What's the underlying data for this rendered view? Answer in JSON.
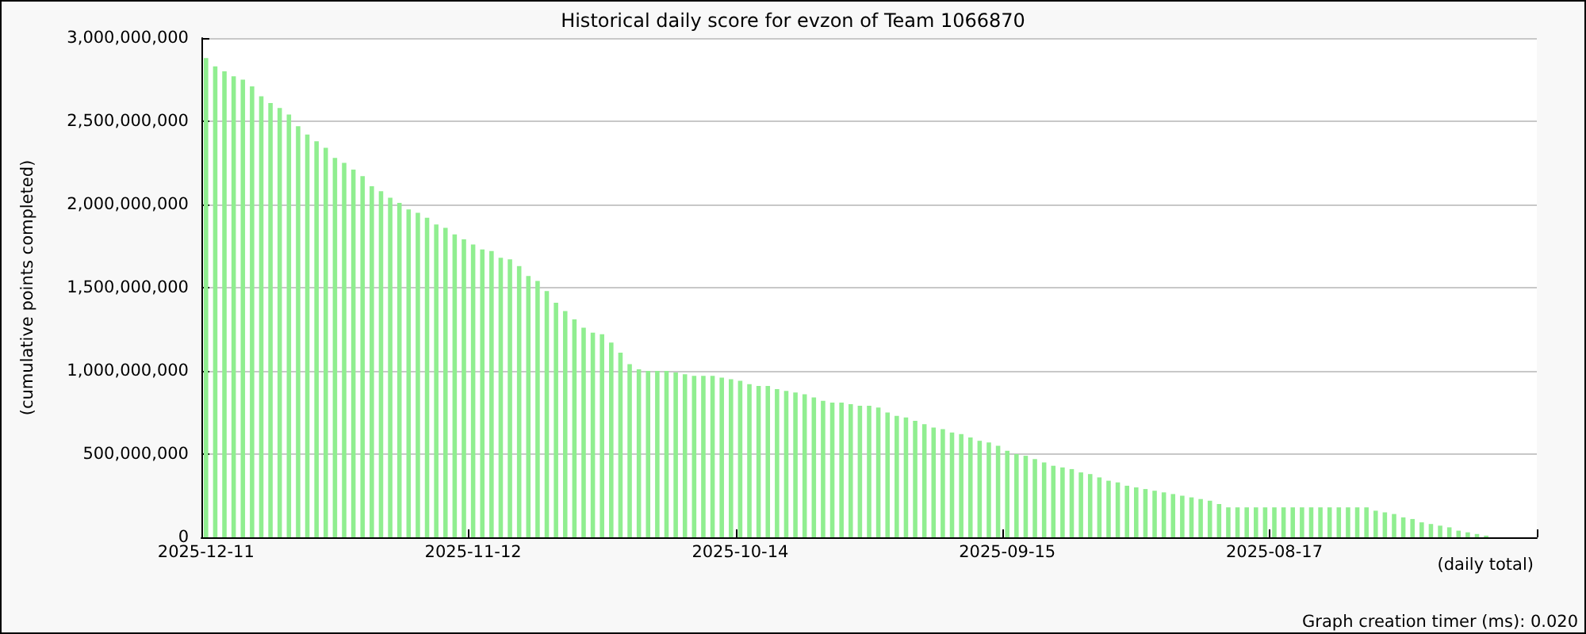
{
  "chart_data": {
    "type": "bar",
    "title": "Historical daily score for evzon of Team 1066870",
    "xlabel": "(daily total)",
    "ylabel": "(cumulative points completed)",
    "annotations": [
      "Graph creation timer (ms): 0.020"
    ],
    "categories": [
      "2025-12-11",
      null,
      null,
      null,
      null,
      null,
      null,
      null,
      null,
      null,
      null,
      null,
      null,
      null,
      null,
      null,
      null,
      null,
      null,
      null,
      null,
      null,
      null,
      null,
      null,
      null,
      null,
      null,
      null,
      "2025-11-12",
      null,
      null,
      null,
      null,
      null,
      null,
      null,
      null,
      null,
      null,
      null,
      null,
      null,
      null,
      null,
      null,
      null,
      null,
      null,
      null,
      null,
      null,
      null,
      null,
      null,
      null,
      null,
      null,
      "2025-10-14",
      null,
      null,
      null,
      null,
      null,
      null,
      null,
      null,
      null,
      null,
      null,
      null,
      null,
      null,
      null,
      null,
      null,
      null,
      null,
      null,
      null,
      null,
      null,
      null,
      null,
      null,
      null,
      null,
      "2025-09-15",
      null,
      null,
      null,
      null,
      null,
      null,
      null,
      null,
      null,
      null,
      null,
      null,
      null,
      null,
      null,
      null,
      null,
      null,
      null,
      null,
      null,
      null,
      null,
      null,
      null,
      null,
      null,
      null,
      "2025-08-17",
      null,
      null,
      null,
      null,
      null,
      null,
      null,
      null,
      null,
      null,
      null,
      null,
      null,
      null,
      null,
      null,
      null,
      null,
      null,
      null,
      null,
      null,
      null,
      null,
      null,
      null,
      null,
      null
    ],
    "values": [
      2880000000,
      2830000000,
      2800000000,
      2770000000,
      2750000000,
      2710000000,
      2650000000,
      2610000000,
      2580000000,
      2540000000,
      2470000000,
      2420000000,
      2380000000,
      2340000000,
      2280000000,
      2250000000,
      2210000000,
      2170000000,
      2110000000,
      2080000000,
      2040000000,
      2010000000,
      1970000000,
      1950000000,
      1920000000,
      1880000000,
      1860000000,
      1820000000,
      1790000000,
      1760000000,
      1730000000,
      1720000000,
      1680000000,
      1670000000,
      1630000000,
      1570000000,
      1540000000,
      1480000000,
      1410000000,
      1360000000,
      1310000000,
      1260000000,
      1230000000,
      1220000000,
      1170000000,
      1110000000,
      1040000000,
      1010000000,
      1000000000,
      1000000000,
      1000000000,
      990000000,
      980000000,
      970000000,
      970000000,
      970000000,
      960000000,
      950000000,
      940000000,
      920000000,
      910000000,
      910000000,
      890000000,
      880000000,
      870000000,
      860000000,
      840000000,
      820000000,
      810000000,
      810000000,
      800000000,
      790000000,
      790000000,
      780000000,
      750000000,
      730000000,
      720000000,
      700000000,
      680000000,
      660000000,
      650000000,
      630000000,
      620000000,
      600000000,
      580000000,
      570000000,
      550000000,
      520000000,
      500000000,
      490000000,
      470000000,
      450000000,
      430000000,
      420000000,
      410000000,
      390000000,
      380000000,
      360000000,
      340000000,
      330000000,
      310000000,
      300000000,
      290000000,
      280000000,
      270000000,
      260000000,
      250000000,
      240000000,
      230000000,
      220000000,
      200000000,
      180000000,
      180000000,
      180000000,
      180000000,
      180000000,
      180000000,
      180000000,
      180000000,
      180000000,
      180000000,
      180000000,
      180000000,
      180000000,
      180000000,
      180000000,
      180000000,
      160000000,
      150000000,
      140000000,
      120000000,
      110000000,
      90000000,
      80000000,
      70000000,
      60000000,
      40000000,
      30000000,
      20000000,
      10000000,
      0,
      0,
      0,
      0,
      0
    ],
    "color": "#90ee90",
    "ylim": [
      0,
      3000000000
    ],
    "yticks": [
      0,
      {
        "value": 500000000,
        "label": "500,000,000"
      },
      {
        "value": 1000000000,
        "label": "1,000,000,000"
      },
      {
        "value": 1500000000,
        "label": "1,500,000,000"
      },
      {
        "value": 2000000000,
        "label": "2,000,000,000"
      },
      {
        "value": 2500000000,
        "label": "2,500,000,000"
      },
      {
        "value": 3000000000,
        "label": "3,000,000,000"
      }
    ],
    "grid": "y"
  }
}
